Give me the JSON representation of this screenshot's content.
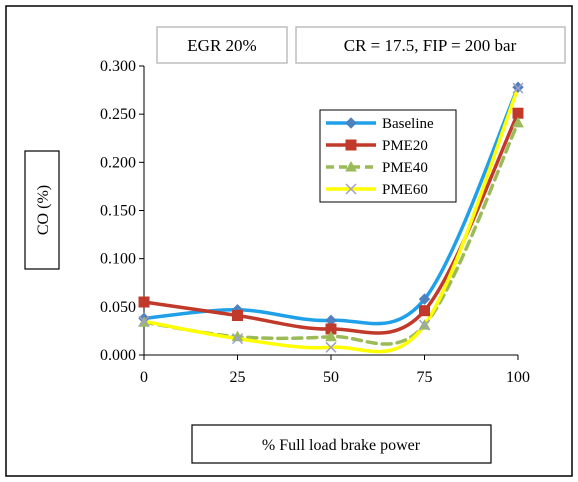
{
  "chart_data": {
    "type": "line",
    "annotations": [
      "EGR 20%",
      "CR = 17.5, FIP = 200 bar"
    ],
    "xlabel": "% Full load brake power",
    "ylabel": "CO (%)",
    "x": [
      0,
      25,
      50,
      75,
      100
    ],
    "x_ticks": [
      "0",
      "25",
      "50",
      "75",
      "100"
    ],
    "y_ticks": [
      "0.000",
      "0.050",
      "0.100",
      "0.150",
      "0.200",
      "0.250",
      "0.300"
    ],
    "ylim": [
      0,
      0.3
    ],
    "grid": false,
    "legend_position": "top-right",
    "series": [
      {
        "name": "Baseline",
        "values": [
          0.038,
          0.047,
          0.036,
          0.058,
          0.278
        ],
        "color": "#1FA0E8",
        "marker": "diamond",
        "dash": "solid"
      },
      {
        "name": "PME20",
        "values": [
          0.055,
          0.041,
          0.027,
          0.046,
          0.251
        ],
        "color": "#C0392B",
        "marker": "square",
        "dash": "solid"
      },
      {
        "name": "PME40",
        "values": [
          0.034,
          0.019,
          0.019,
          0.031,
          0.241
        ],
        "color": "#9BBB59",
        "marker": "triangle",
        "dash": "dashed"
      },
      {
        "name": "PME60",
        "values": [
          0.035,
          0.017,
          0.008,
          0.031,
          0.277
        ],
        "color": "#FFFF00",
        "marker": "x",
        "dash": "solid"
      }
    ]
  }
}
